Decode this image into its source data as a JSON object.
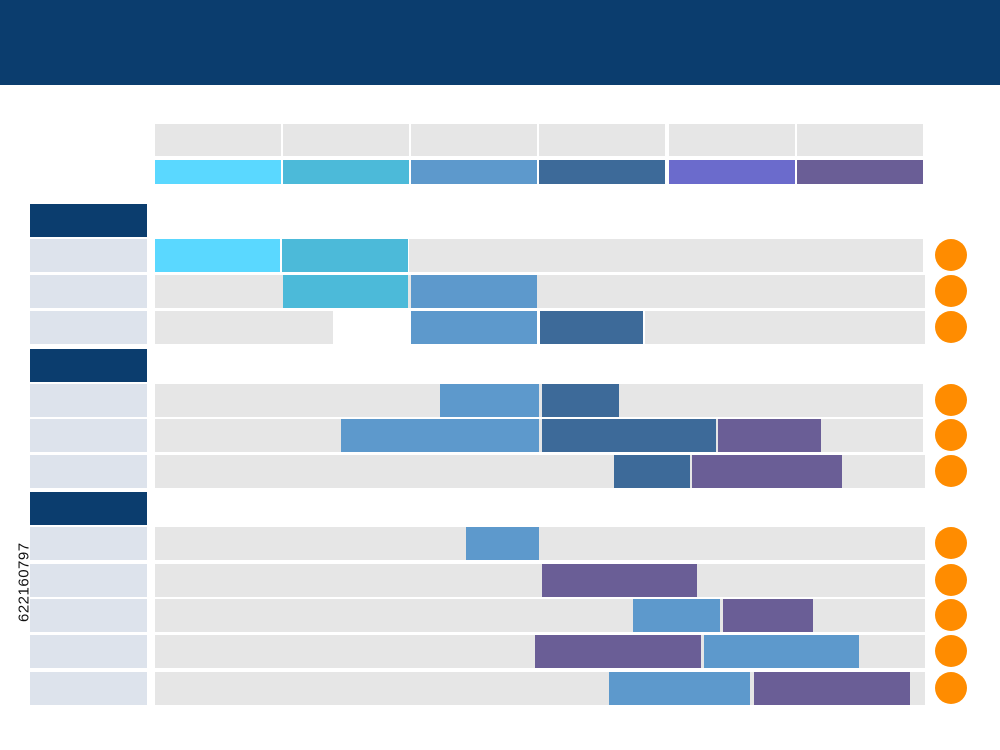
{
  "colors": {
    "header": "#0b3d6e",
    "column_header": "#e6e6e6",
    "group_label": "#0b3d6e",
    "row_label": "#dde3ec",
    "track": "#e6e6e6",
    "status": "#ff8c00",
    "phases": [
      "#5ad8ff",
      "#4cbad9",
      "#5d99cc",
      "#3d6a99",
      "#6b6bcc",
      "#6a5e96"
    ]
  },
  "columns_count": 6,
  "side_text": "622160797",
  "groups_count": 3,
  "rows_count": 11
}
